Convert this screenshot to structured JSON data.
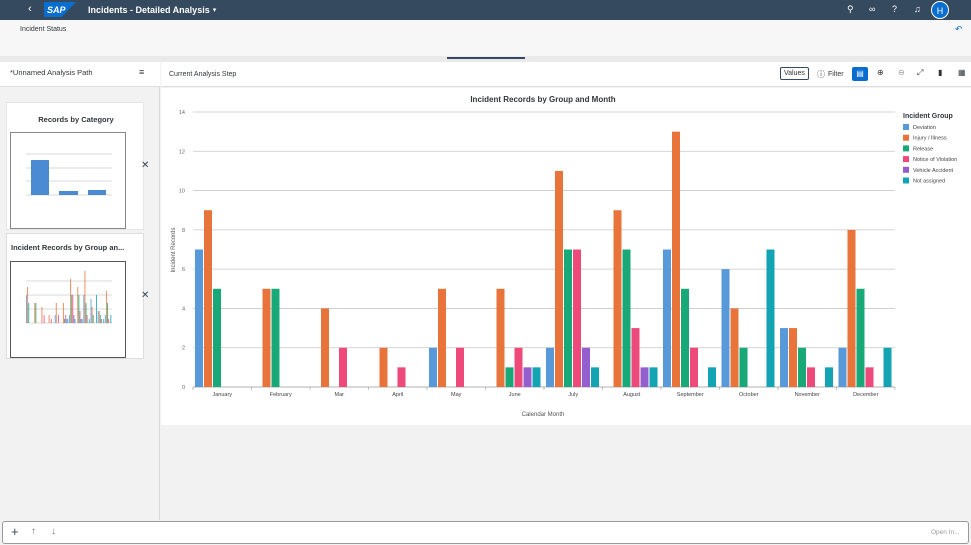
{
  "shell": {
    "back_icon": "chevron-left-icon",
    "logo": "SAP",
    "title": "Incidents - Detailed Analysis",
    "avatar": "H",
    "icons": [
      "search-icon",
      "binoculars-icon",
      "help-icon",
      "bell-icon"
    ]
  },
  "subheader": {
    "title": "Incident Status",
    "undo_icon": "undo-icon"
  },
  "left_panel": {
    "path_title": "*Unnamed Analysis Path",
    "steps": [
      {
        "title": "Records by Category"
      },
      {
        "title": "Incident Records by Group an..."
      }
    ]
  },
  "toolbar": {
    "step_label": "Current Analysis Step",
    "values_label": "Values",
    "filter_label": "Filter"
  },
  "bottom": {
    "open_in": "Open In..."
  },
  "chart_data": {
    "type": "bar",
    "title": "Incident Records by Group and Month",
    "xlabel": "Calendar Month",
    "ylabel": "Incident Records",
    "ylim": [
      0,
      14
    ],
    "yticks": [
      0,
      2,
      4,
      6,
      8,
      10,
      12,
      14
    ],
    "grid": true,
    "legend_position": "right",
    "legend_title": "Incident Group",
    "categories": [
      "January",
      "February",
      "Mar",
      "April",
      "May",
      "June",
      "July",
      "August",
      "September",
      "October",
      "November",
      "December"
    ],
    "series": [
      {
        "name": "Deviation",
        "color": "#5899da",
        "values": [
          7,
          0,
          0,
          0,
          2,
          0,
          2,
          0,
          7,
          6,
          3,
          2
        ]
      },
      {
        "name": "Injury / Illness",
        "color": "#e8743b",
        "values": [
          9,
          5,
          4,
          2,
          5,
          5,
          11,
          9,
          13,
          4,
          3,
          8
        ]
      },
      {
        "name": "Release",
        "color": "#19a979",
        "values": [
          5,
          5,
          0,
          0,
          0,
          1,
          7,
          7,
          5,
          2,
          2,
          5
        ]
      },
      {
        "name": "Notice of Violation",
        "color": "#ed4a7b",
        "values": [
          0,
          0,
          2,
          1,
          2,
          2,
          7,
          3,
          2,
          0,
          1,
          1
        ]
      },
      {
        "name": "Vehicle Accident",
        "color": "#945ecf",
        "values": [
          0,
          0,
          0,
          0,
          0,
          1,
          2,
          1,
          0,
          0,
          0,
          0
        ]
      },
      {
        "name": "Not assigned",
        "color": "#13a4b4",
        "values": [
          0,
          0,
          0,
          0,
          0,
          1,
          1,
          1,
          1,
          7,
          1,
          2
        ]
      }
    ]
  }
}
